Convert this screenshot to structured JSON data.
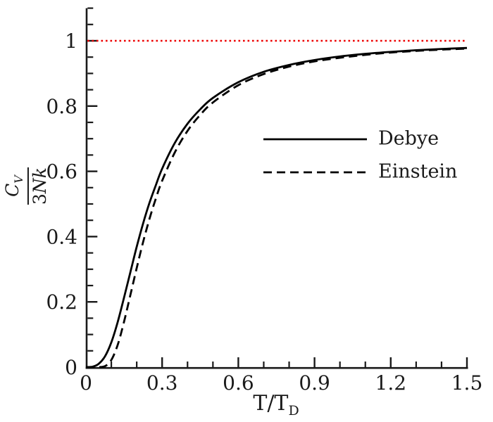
{
  "figure": {
    "background": "#ffffff",
    "axis_color": "#1a1a1a",
    "curve_color": "#000000",
    "reference_color": "#ee0000"
  },
  "chart_data": {
    "type": "line",
    "title": "",
    "xlabel": "T/T_D",
    "ylabel": "C_V / 3Nk",
    "xlabel_parts": {
      "main": "T/T",
      "sub": "D"
    },
    "ylabel_parts": {
      "num_main": "C",
      "num_sub": "V",
      "den_prefix": "3",
      "den_main": "Nk"
    },
    "xlim": [
      0,
      1.5
    ],
    "ylim": [
      0,
      1.1
    ],
    "grid": false,
    "x_major_ticks": [
      0,
      0.3,
      0.6,
      0.9,
      1.2,
      1.5
    ],
    "x_tick_labels": [
      "0",
      "0.3",
      "0.6",
      "0.9",
      "1.2",
      "1.5"
    ],
    "x_minor_step": 0.1,
    "y_major_ticks": [
      0,
      0.2,
      0.4,
      0.6,
      0.8,
      1
    ],
    "y_tick_labels": [
      "0",
      "0.2",
      "0.4",
      "0.6",
      "0.8",
      "1"
    ],
    "y_minor_step": 0.05,
    "reference_line": {
      "y": 1.0,
      "style": "dotted",
      "color": "#ee0000"
    },
    "legend": {
      "position": "right-center",
      "entries": [
        "Debye",
        "Einstein"
      ]
    },
    "x": [
      0,
      0.025,
      0.05,
      0.075,
      0.1,
      0.125,
      0.15,
      0.175,
      0.2,
      0.225,
      0.25,
      0.275,
      0.3,
      0.35,
      0.4,
      0.45,
      0.5,
      0.6,
      0.7,
      0.8,
      0.9,
      1.0,
      1.1,
      1.2,
      1.3,
      1.4,
      1.5
    ],
    "series": [
      {
        "name": "Debye",
        "style": "solid",
        "color": "#000000",
        "values": [
          0,
          0.001,
          0.01,
          0.033,
          0.076,
          0.138,
          0.213,
          0.291,
          0.369,
          0.44,
          0.503,
          0.557,
          0.608,
          0.687,
          0.746,
          0.79,
          0.825,
          0.873,
          0.905,
          0.926,
          0.941,
          0.952,
          0.96,
          0.966,
          0.971,
          0.975,
          0.978
        ]
      },
      {
        "name": "Einstein",
        "style": "dashed",
        "color": "#000000",
        "values": [
          0,
          0,
          0,
          0.003,
          0.022,
          0.068,
          0.139,
          0.221,
          0.304,
          0.383,
          0.454,
          0.516,
          0.571,
          0.658,
          0.724,
          0.773,
          0.811,
          0.864,
          0.898,
          0.921,
          0.937,
          0.948,
          0.957,
          0.964,
          0.969,
          0.973,
          0.976
        ]
      }
    ]
  }
}
